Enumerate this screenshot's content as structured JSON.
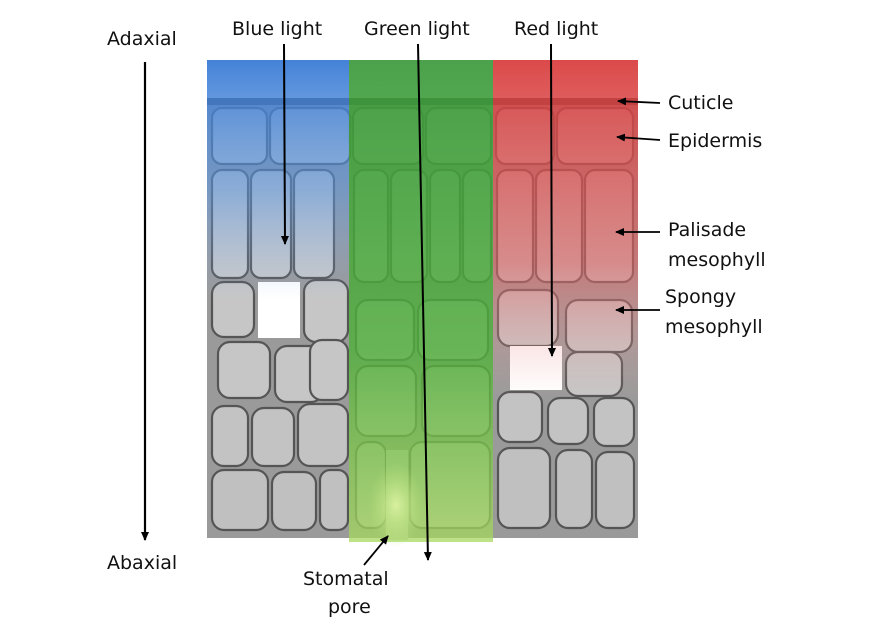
{
  "axis": {
    "top_label": "Adaxial",
    "bottom_label": "Abaxial"
  },
  "light_beams": [
    {
      "label": "Blue light",
      "color": "#3a7bd5"
    },
    {
      "label": "Green light",
      "color": "#3c9a3c"
    },
    {
      "label": "Red light",
      "color": "#d83a3a"
    }
  ],
  "tissue_layers": [
    {
      "label_lines": [
        "Cuticle"
      ]
    },
    {
      "label_lines": [
        "Epidermis"
      ]
    },
    {
      "label_lines": [
        "Palisade",
        "mesophyll"
      ]
    },
    {
      "label_lines": [
        "Spongy",
        "mesophyll"
      ]
    }
  ],
  "stomatal_pore": {
    "label_lines": [
      "Stomatal",
      "pore"
    ]
  },
  "colors": {
    "cell_fill": "#c9c9c9",
    "cell_outline": "#555555",
    "cuticle": "#3a3a3a",
    "pore_glow": "#b8e07a"
  }
}
